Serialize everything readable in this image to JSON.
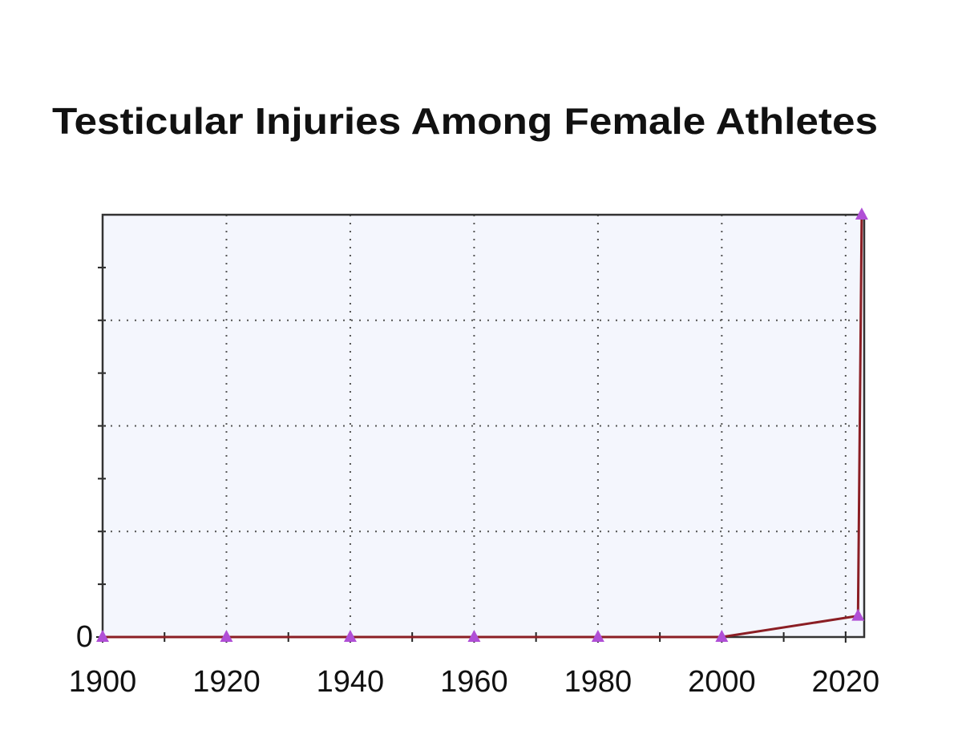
{
  "chart_data": {
    "type": "line",
    "title": "Testicular Injuries Among Female Athletes",
    "x": [
      1900,
      1920,
      1940,
      1960,
      1980,
      2000,
      2022,
      2022.6
    ],
    "series": [
      {
        "values": [
          0,
          0,
          0,
          0,
          0,
          0,
          0.4,
          8
        ],
        "color": "#8b1e24",
        "marker_color": "#b04fd6"
      }
    ],
    "xlim": [
      1900,
      2023
    ],
    "xticks": [
      1900,
      1920,
      1940,
      1960,
      1980,
      2000,
      2020
    ],
    "ylim": [
      0,
      8
    ],
    "yticks": [
      0
    ],
    "grid": true
  }
}
